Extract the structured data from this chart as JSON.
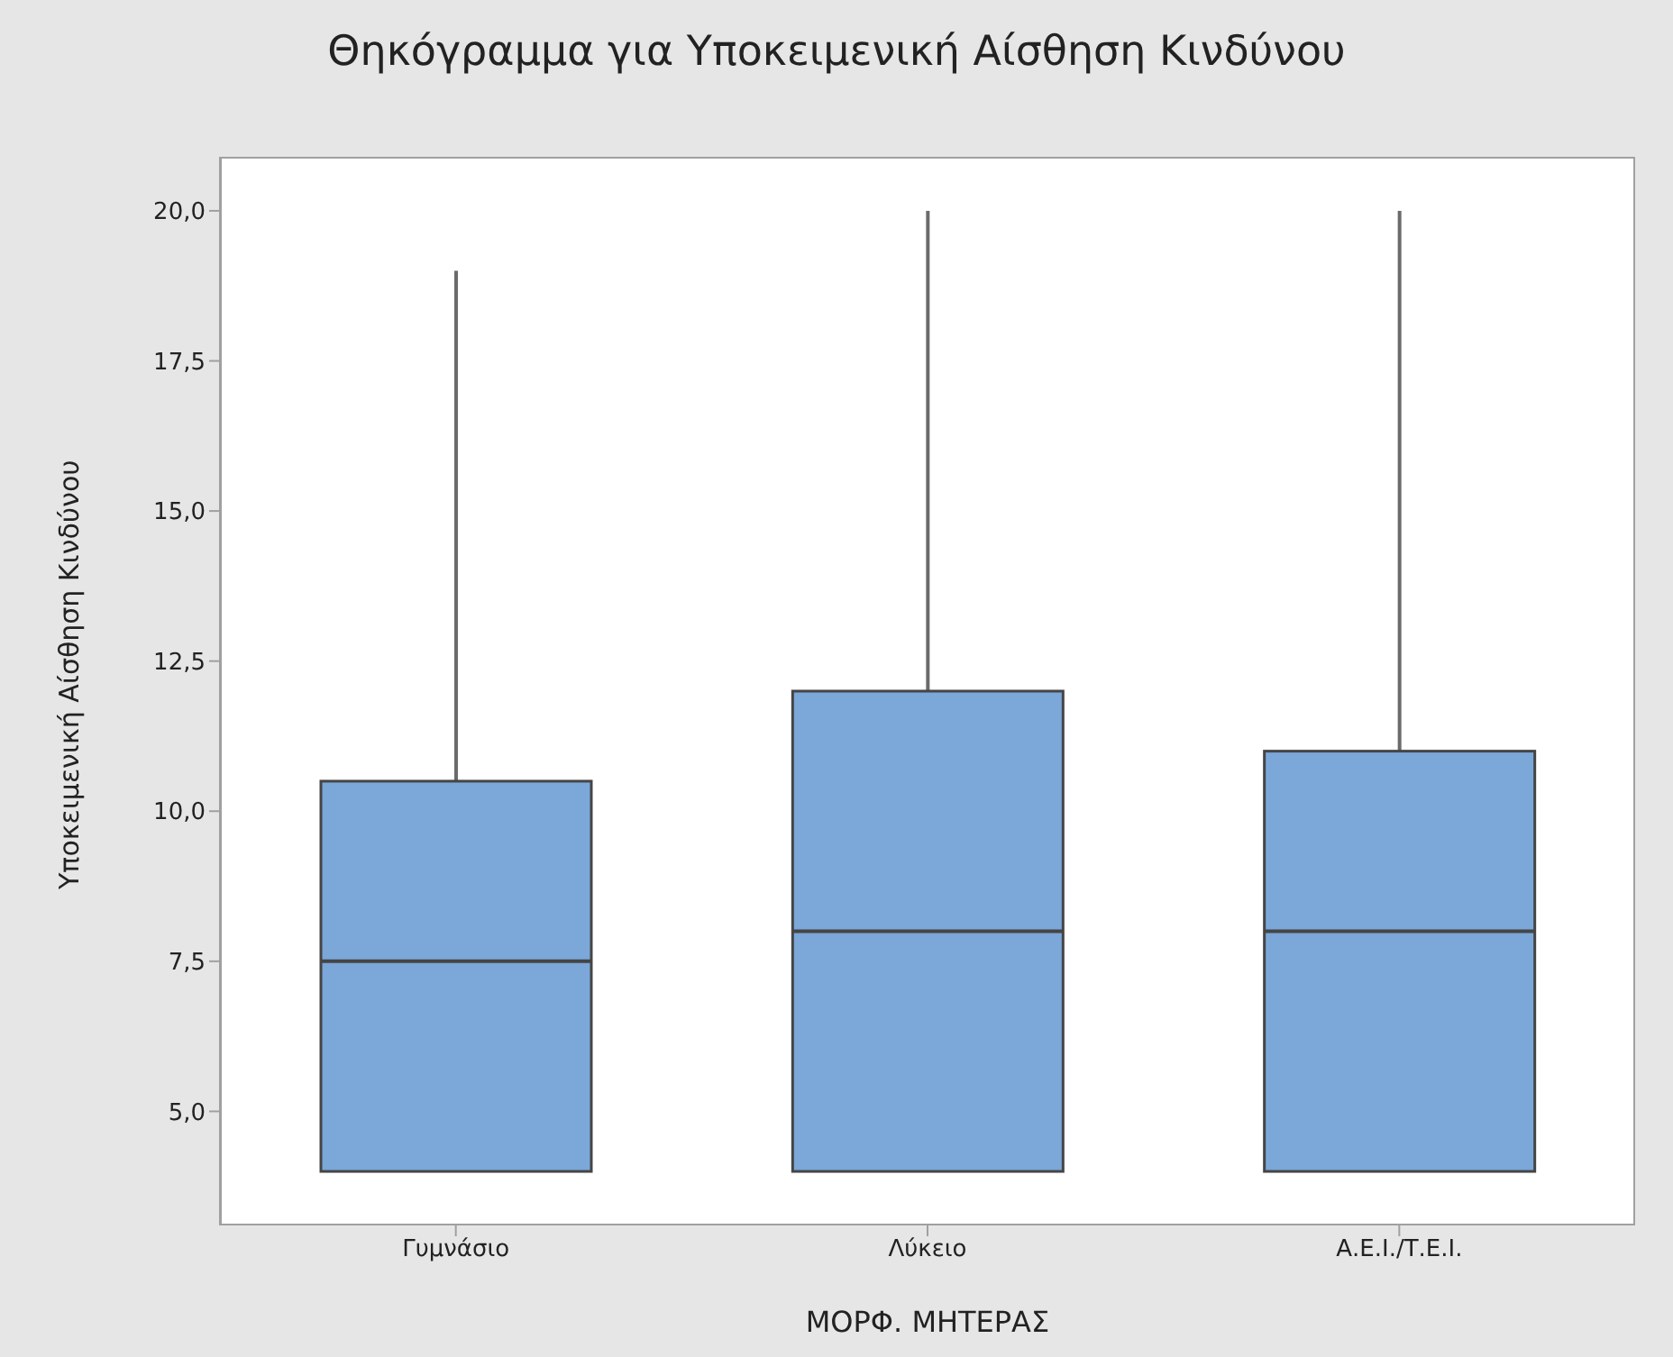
{
  "chart_data": {
    "type": "box",
    "title": "Θηκόγραμμα για Υποκειμενική Αίσθηση Κινδύνου",
    "xlabel": "ΜΟΡΦ. ΜΗΤΕΡΑΣ",
    "ylabel": "Υποκειμενική Αίσθηση Κινδύνου",
    "categories": [
      "Γυμνάσιο",
      "Λύκειο",
      "Α.Ε.Ι./Τ.Ε.Ι."
    ],
    "boxes": [
      {
        "low": 4,
        "q1": 4,
        "median": 7.5,
        "q3": 10.5,
        "high": 19
      },
      {
        "low": 4,
        "q1": 4,
        "median": 8,
        "q3": 12,
        "high": 20
      },
      {
        "low": 4,
        "q1": 4,
        "median": 8,
        "q3": 11,
        "high": 20
      }
    ],
    "color": "#7ba7d9",
    "ylim": [
      3.1,
      20.9
    ],
    "yticks": [
      {
        "value": 5,
        "label": "5,0"
      },
      {
        "value": 7.5,
        "label": "7,5"
      },
      {
        "value": 10,
        "label": "10,0"
      },
      {
        "value": 12.5,
        "label": "12,5"
      },
      {
        "value": 15,
        "label": "15,0"
      },
      {
        "value": 17.5,
        "label": "17,5"
      },
      {
        "value": 20,
        "label": "20,0"
      }
    ]
  }
}
